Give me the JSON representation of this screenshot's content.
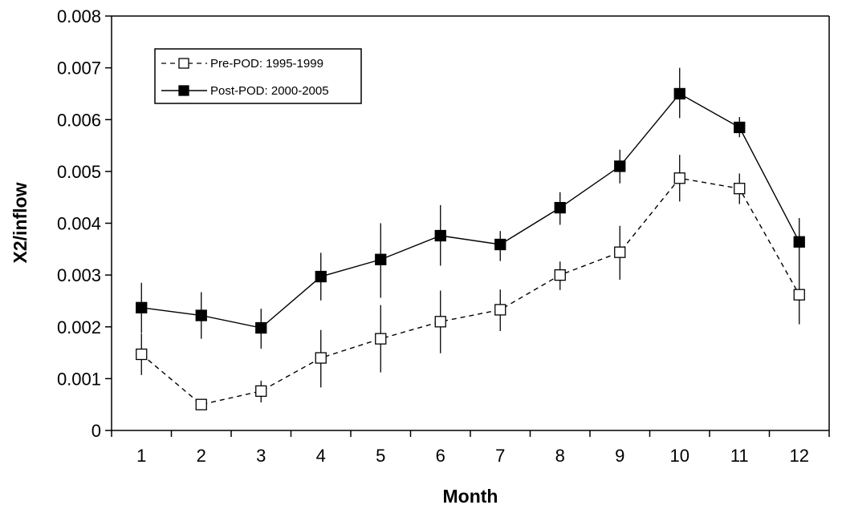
{
  "chart_data": {
    "type": "line",
    "title": "",
    "xlabel": "Month",
    "ylabel": "X2/inflow",
    "x": [
      1,
      2,
      3,
      4,
      5,
      6,
      7,
      8,
      9,
      10,
      11,
      12
    ],
    "xlim": [
      0.5,
      12.5
    ],
    "ylim": [
      0,
      0.008
    ],
    "xticks": [
      "1",
      "2",
      "3",
      "4",
      "5",
      "6",
      "7",
      "8",
      "9",
      "10",
      "11",
      "12"
    ],
    "yticks": [
      "0",
      "0.001",
      "0.002",
      "0.003",
      "0.004",
      "0.005",
      "0.006",
      "0.007",
      "0.008"
    ],
    "ytick_values": [
      0,
      0.001,
      0.002,
      0.003,
      0.004,
      0.005,
      0.006,
      0.007,
      0.008
    ],
    "grid": false,
    "legend_position": "top-left",
    "series": [
      {
        "name": "Pre-POD: 1995-1999",
        "marker": "open-square",
        "line_style": "dashed",
        "color": "#000000",
        "values": [
          0.00147,
          0.0005,
          0.00076,
          0.0014,
          0.00177,
          0.0021,
          0.00233,
          0.003,
          0.00344,
          0.00487,
          0.00467,
          0.00262
        ],
        "error_low": [
          0.00107,
          0.0005,
          0.00054,
          0.00083,
          0.00112,
          0.00149,
          0.00192,
          0.00271,
          0.00291,
          0.00442,
          0.00437,
          0.00205
        ],
        "error_high": [
          0.00187,
          0.0005,
          0.00096,
          0.00194,
          0.00242,
          0.0027,
          0.00272,
          0.00326,
          0.00395,
          0.00532,
          0.00496,
          0.00318
        ]
      },
      {
        "name": "Post-POD: 2000-2005",
        "marker": "filled-square",
        "line_style": "solid",
        "color": "#000000",
        "values": [
          0.00237,
          0.00222,
          0.00198,
          0.00297,
          0.0033,
          0.00376,
          0.00359,
          0.0043,
          0.0051,
          0.0065,
          0.00585,
          0.00364
        ],
        "error_low": [
          0.00188,
          0.00177,
          0.00158,
          0.00251,
          0.00256,
          0.00318,
          0.00327,
          0.00397,
          0.00477,
          0.00603,
          0.00566,
          0.00318
        ],
        "error_high": [
          0.00285,
          0.00267,
          0.00235,
          0.00343,
          0.004,
          0.00435,
          0.00385,
          0.0046,
          0.00542,
          0.007,
          0.00605,
          0.0041
        ]
      }
    ]
  }
}
